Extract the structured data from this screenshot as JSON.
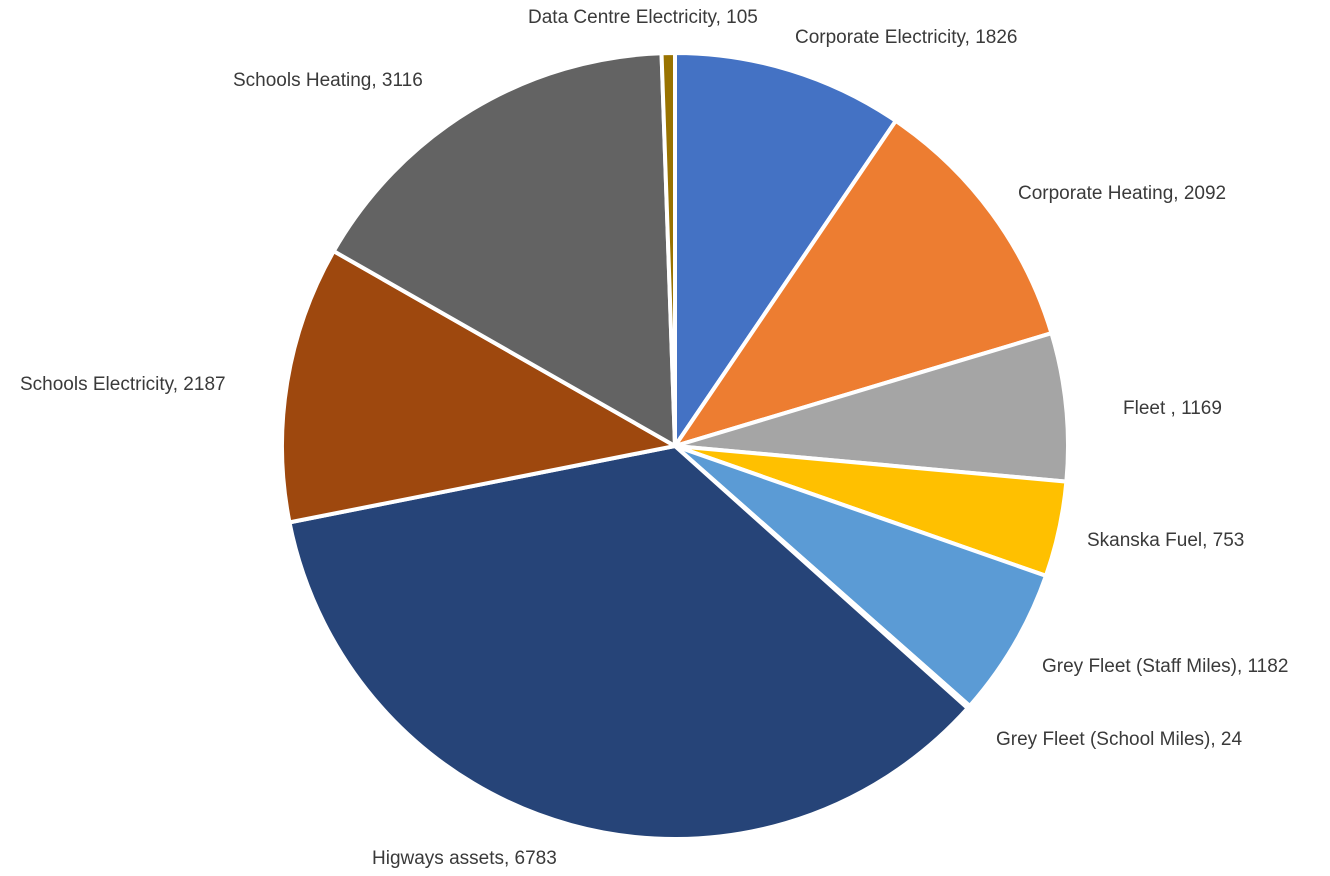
{
  "chart_data": {
    "type": "pie",
    "start_angle_deg": 0,
    "direction": "clockwise",
    "data_labels": "category, value",
    "legend": "none",
    "slices": [
      {
        "label": "Corporate Electricity",
        "value": 1826,
        "color": "#4472C4"
      },
      {
        "label": "Corporate Heating",
        "value": 2092,
        "color": "#ED7D31"
      },
      {
        "label": "Fleet ",
        "value": 1169,
        "color": "#A5A5A5"
      },
      {
        "label": "Skanska Fuel",
        "value": 753,
        "color": "#FFC000"
      },
      {
        "label": "Grey Fleet (Staff Miles)",
        "value": 1182,
        "color": "#5B9BD5"
      },
      {
        "label": "Grey Fleet (School Miles)",
        "value": 24,
        "color": "#70AD47"
      },
      {
        "label": "Higways assets",
        "value": 6783,
        "color": "#264478"
      },
      {
        "label": "Schools Electricity",
        "value": 2187,
        "color": "#9E480E"
      },
      {
        "label": "Schools Heating",
        "value": 3116,
        "color": "#636363"
      },
      {
        "label": "Data Centre Electricity",
        "value": 105,
        "color": "#997300"
      }
    ]
  }
}
